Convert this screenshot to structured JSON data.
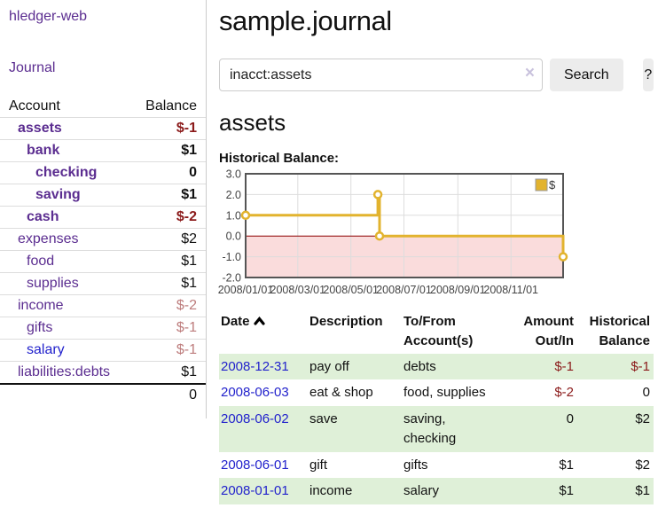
{
  "colors": {
    "accent_purple": "#5b2d90",
    "link_blue": "#2222cc",
    "negative_strong": "#8b1a1a",
    "negative_muted": "#bd7c7c",
    "row_green": "#dff0d8"
  },
  "sidebar": {
    "brand": "hledger-web",
    "journal_link": "Journal",
    "accounts": {
      "header_account": "Account",
      "header_balance": "Balance",
      "rows": [
        {
          "name": "assets",
          "balance": "$-1"
        },
        {
          "name": "bank",
          "balance": "$1"
        },
        {
          "name": "checking",
          "balance": "0"
        },
        {
          "name": "saving",
          "balance": "$1"
        },
        {
          "name": "cash",
          "balance": "$-2"
        },
        {
          "name": "expenses",
          "balance": "$2"
        },
        {
          "name": "food",
          "balance": "$1"
        },
        {
          "name": "supplies",
          "balance": "$1"
        },
        {
          "name": "income",
          "balance": "$-2"
        },
        {
          "name": "gifts",
          "balance": "$-1"
        },
        {
          "name": "salary",
          "balance": "$-1"
        },
        {
          "name": "liabilities:debts",
          "balance": "$1"
        }
      ],
      "total": "0"
    }
  },
  "main": {
    "title": "sample.journal",
    "search": {
      "query": "inacct:assets",
      "clear_icon": "×",
      "button": "Search",
      "help_button": "?"
    },
    "section_title": "assets",
    "chart_title": "Historical Balance:"
  },
  "chart_data": {
    "type": "line",
    "title": "Historical Balance",
    "step": true,
    "series": [
      {
        "name": "$",
        "points": [
          {
            "date": "2008-01-01",
            "day": 0,
            "value": 1
          },
          {
            "date": "2008-06-01",
            "day": 152,
            "value": 2
          },
          {
            "date": "2008-06-03",
            "day": 154,
            "value": 0
          },
          {
            "date": "2008-12-31",
            "day": 365,
            "value": -1
          }
        ]
      }
    ],
    "ylim": [
      -2,
      3
    ],
    "yticks": [
      3,
      2,
      1,
      0,
      -1,
      -2
    ],
    "ytick_labels": [
      "3.0",
      "2.0",
      "1.0",
      "0.0",
      "-1.0",
      "-2.0"
    ],
    "xlim_days": [
      0,
      365
    ],
    "xticks": [
      {
        "label": "2008/01/01",
        "day": 0
      },
      {
        "label": "2008/03/01",
        "day": 60
      },
      {
        "label": "2008/05/01",
        "day": 121
      },
      {
        "label": "2008/07/01",
        "day": 182
      },
      {
        "label": "2008/09/01",
        "day": 244
      },
      {
        "label": "2008/11/01",
        "day": 305
      }
    ],
    "legend": {
      "label": "$",
      "position": "top-right"
    },
    "grid": true,
    "colors": {
      "line": "#e2b32e",
      "marker_fill": "#ffffff",
      "negative_fill": "#fadcdc",
      "zero_line": "#8b0000",
      "grid": "#dddddd",
      "border": "#555555"
    }
  },
  "register": {
    "headers": {
      "date": "Date",
      "description": "Description",
      "account": "To/From Account(s)",
      "amount": "Amount Out/In",
      "balance": "Historical Balance"
    },
    "rows": [
      {
        "date": "2008-12-31",
        "description": "pay off",
        "accounts": "debts",
        "amount": "$-1",
        "balance": "$-1"
      },
      {
        "date": "2008-06-03",
        "description": "eat & shop",
        "accounts": "food, supplies",
        "amount": "$-2",
        "balance": "0"
      },
      {
        "date": "2008-06-02",
        "description": "save",
        "accounts": "saving, checking",
        "amount": "0",
        "balance": "$2"
      },
      {
        "date": "2008-06-01",
        "description": "gift",
        "accounts": "gifts",
        "amount": "$1",
        "balance": "$2"
      },
      {
        "date": "2008-01-01",
        "description": "income",
        "accounts": "salary",
        "amount": "$1",
        "balance": "$1"
      }
    ]
  }
}
